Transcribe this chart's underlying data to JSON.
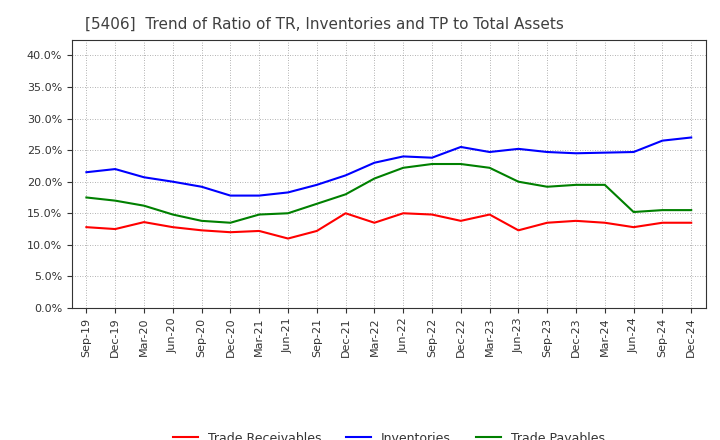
{
  "title": "[5406]  Trend of Ratio of TR, Inventories and TP to Total Assets",
  "labels": [
    "Sep-19",
    "Dec-19",
    "Mar-20",
    "Jun-20",
    "Sep-20",
    "Dec-20",
    "Mar-21",
    "Jun-21",
    "Sep-21",
    "Dec-21",
    "Mar-22",
    "Jun-22",
    "Sep-22",
    "Dec-22",
    "Mar-23",
    "Jun-23",
    "Sep-23",
    "Dec-23",
    "Mar-24",
    "Jun-24",
    "Sep-24",
    "Dec-24"
  ],
  "trade_receivables": [
    0.128,
    0.125,
    0.136,
    0.128,
    0.123,
    0.12,
    0.122,
    0.11,
    0.122,
    0.15,
    0.135,
    0.15,
    0.148,
    0.138,
    0.148,
    0.123,
    0.135,
    0.138,
    0.135,
    0.128,
    0.135,
    0.135
  ],
  "inventories": [
    0.215,
    0.22,
    0.207,
    0.2,
    0.192,
    0.178,
    0.178,
    0.183,
    0.195,
    0.21,
    0.23,
    0.24,
    0.238,
    0.255,
    0.247,
    0.252,
    0.247,
    0.245,
    0.246,
    0.247,
    0.265,
    0.27
  ],
  "trade_payables": [
    0.175,
    0.17,
    0.162,
    0.148,
    0.138,
    0.135,
    0.148,
    0.15,
    0.165,
    0.18,
    0.205,
    0.222,
    0.228,
    0.228,
    0.222,
    0.2,
    0.192,
    0.195,
    0.195,
    0.152,
    0.155,
    0.155
  ],
  "tr_color": "#ff0000",
  "inv_color": "#0000ff",
  "tp_color": "#008000",
  "ylim": [
    0.0,
    0.425
  ],
  "yticks": [
    0.0,
    0.05,
    0.1,
    0.15,
    0.2,
    0.25,
    0.3,
    0.35,
    0.4
  ],
  "background_color": "#ffffff",
  "grid_color": "#999999",
  "title_fontsize": 11,
  "tick_fontsize": 8,
  "legend_labels": [
    "Trade Receivables",
    "Inventories",
    "Trade Payables"
  ],
  "title_color": "#404040"
}
